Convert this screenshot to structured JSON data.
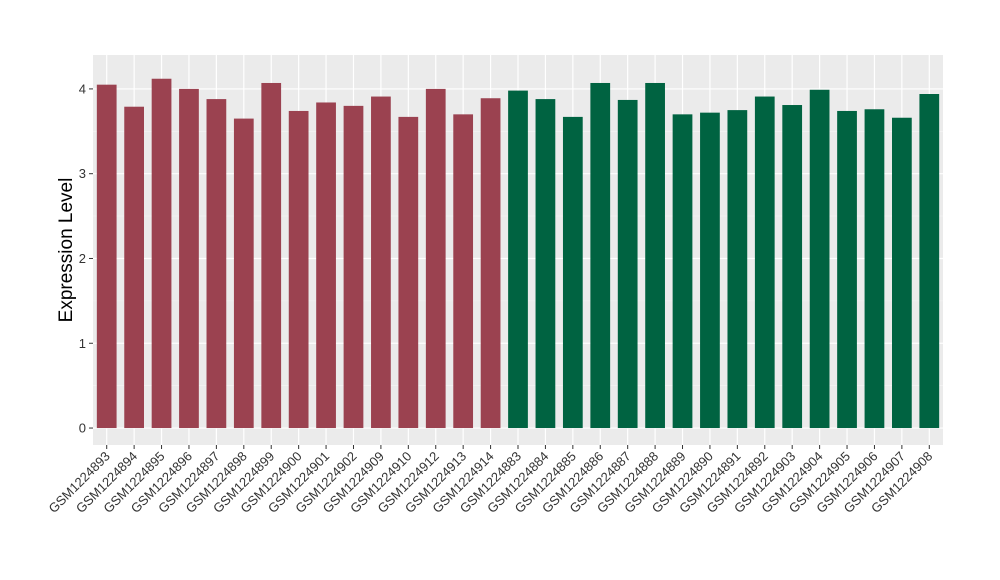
{
  "chart_data": {
    "type": "bar",
    "title": "",
    "xlabel": "",
    "ylabel": "Expression Level",
    "ylim": [
      -0.2,
      4.4
    ],
    "yticks": [
      0,
      1,
      2,
      3,
      4
    ],
    "grid": true,
    "panel_background": "#ebebeb",
    "categories": [
      "GSM1224893",
      "GSM1224894",
      "GSM1224895",
      "GSM1224896",
      "GSM1224897",
      "GSM1224898",
      "GSM1224899",
      "GSM1224900",
      "GSM1224901",
      "GSM1224902",
      "GSM1224909",
      "GSM1224910",
      "GSM1224912",
      "GSM1224913",
      "GSM1224914",
      "GSM1224883",
      "GSM1224884",
      "GSM1224885",
      "GSM1224886",
      "GSM1224887",
      "GSM1224888",
      "GSM1224889",
      "GSM1224890",
      "GSM1224891",
      "GSM1224892",
      "GSM1224903",
      "GSM1224904",
      "GSM1224905",
      "GSM1224906",
      "GSM1224907",
      "GSM1224908"
    ],
    "values": [
      4.05,
      3.79,
      4.12,
      4.0,
      3.88,
      3.65,
      4.07,
      3.74,
      3.84,
      3.8,
      3.91,
      3.67,
      4.0,
      3.7,
      3.89,
      3.98,
      3.88,
      3.67,
      4.07,
      3.87,
      4.07,
      3.7,
      3.72,
      3.75,
      3.91,
      3.81,
      3.99,
      3.74,
      3.76,
      3.66,
      3.94
    ],
    "group_colors": [
      "#9b4250",
      "#006341"
    ],
    "groups": [
      0,
      0,
      0,
      0,
      0,
      0,
      0,
      0,
      0,
      0,
      0,
      0,
      0,
      0,
      0,
      1,
      1,
      1,
      1,
      1,
      1,
      1,
      1,
      1,
      1,
      1,
      1,
      1,
      1,
      1,
      1
    ]
  }
}
